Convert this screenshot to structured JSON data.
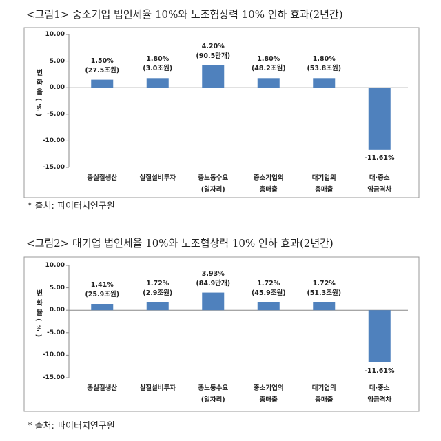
{
  "chart_data": [
    {
      "type": "bar",
      "title": "<그림1> 중소기업 법인세율 10%와 노조협상력 10% 인하 효과(2년간)",
      "y_label": "변화율(%)",
      "categories": [
        "총실질생산",
        "실질설비투자",
        "총노동수요\n(일자리)",
        "중소기업의\n총매출",
        "대기업의\n총매출",
        "대·중소\n임금격차"
      ],
      "values": [
        1.5,
        1.8,
        4.2,
        1.8,
        1.8,
        -11.61
      ],
      "value_labels": [
        "1.50%\n(27.5조원)",
        "1.80%\n(3.0조원)",
        "4.20%\n(90.5만개)",
        "1.80%\n(48.2조원)",
        "1.80%\n(53.8조원)",
        "-11.61%"
      ],
      "color": "#4f81bd",
      "ylim": [
        -15,
        10
      ],
      "yticks": [
        {
          "value": 10,
          "label": "10.00"
        },
        {
          "value": 5,
          "label": "5.00"
        },
        {
          "value": 0,
          "label": "0.00"
        },
        {
          "value": -5,
          "label": "-5.00"
        },
        {
          "value": -10,
          "label": "-10.00"
        },
        {
          "value": -15,
          "label": "-15.00"
        }
      ],
      "note": "* 출처: 파이터치연구원"
    },
    {
      "type": "bar",
      "title": "<그림2> 대기업 법인세율 10%와 노조협상력 10% 인하 효과(2년간)",
      "y_label": "변화율(%)",
      "categories": [
        "총실질생산",
        "실질설비투자",
        "총노동수요\n(일자리)",
        "중소기업의\n총매출",
        "대기업의\n총매출",
        "대·중소\n임금격차"
      ],
      "values": [
        1.41,
        1.72,
        3.93,
        1.72,
        1.72,
        -11.61
      ],
      "value_labels": [
        "1.41%\n(25.9조원)",
        "1.72%\n(2.9조원)",
        "3.93%\n(84.9만개)",
        "1.72%\n(45.9조원)",
        "1.72%\n(51.3조원)",
        "-11.61%"
      ],
      "color": "#4f81bd",
      "ylim": [
        -15,
        10
      ],
      "yticks": [
        {
          "value": 10,
          "label": "10.00"
        },
        {
          "value": 5,
          "label": "5.00"
        },
        {
          "value": 0,
          "label": "0.00"
        },
        {
          "value": -5,
          "label": "-5.00"
        },
        {
          "value": -10,
          "label": "-10.00"
        },
        {
          "value": -15,
          "label": "-15.00"
        }
      ],
      "note": "* 출처: 파이터치연구원"
    }
  ]
}
